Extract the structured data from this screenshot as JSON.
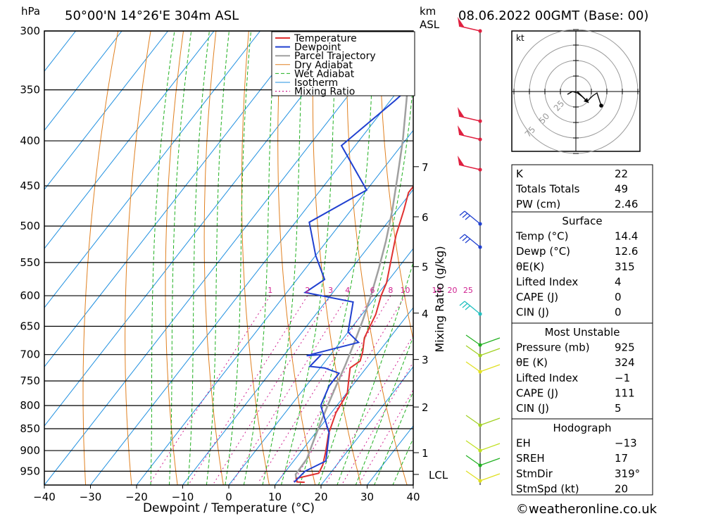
{
  "header": {
    "unit_left": "hPa",
    "location": "50°00'N  14°26'E  304m  ASL",
    "unit_right_1": "km",
    "unit_right_2": "ASL",
    "datetime": "08.06.2022  00GMT  (Base: 00)"
  },
  "chart_data": {
    "type": "line",
    "xlabel": "Dewpoint / Temperature (°C)",
    "ylabel": "",
    "right_label": "Mixing Ratio (g/kg)",
    "x_ticks": [
      -40,
      -30,
      -20,
      -10,
      0,
      10,
      20,
      30,
      40
    ],
    "xlim": [
      -40,
      40
    ],
    "ylim": [
      985,
      300
    ],
    "pressure_levels": [
      300,
      350,
      400,
      450,
      500,
      550,
      600,
      650,
      700,
      750,
      800,
      850,
      900,
      950
    ],
    "km_ticks": [
      {
        "label": "7",
        "p": 428
      },
      {
        "label": "6",
        "p": 488
      },
      {
        "label": "5",
        "p": 556
      },
      {
        "label": "4",
        "p": 628
      },
      {
        "label": "3",
        "p": 709
      },
      {
        "label": "2",
        "p": 803
      },
      {
        "label": "1",
        "p": 905
      },
      {
        "label": "LCL",
        "p": 958
      }
    ],
    "mixing_ratio_labels": [
      "1",
      "2",
      "3",
      "4",
      "6",
      "8",
      "10",
      "16",
      "20",
      "25"
    ],
    "legend": [
      "Temperature",
      "Dewpoint",
      "Parcel Trajectory",
      "Dry Adiabat",
      "Wet Adiabat",
      "Isotherm",
      "Mixing Ratio"
    ],
    "colors": {
      "temperature": "#e03030",
      "dewpoint": "#2040d0",
      "parcel": "#a0a0a0",
      "dry_adiabat": "#e08020",
      "wet_adiabat": "#20b020",
      "isotherm": "#2090e0",
      "mixing_ratio": "#d02090"
    },
    "series": [
      {
        "name": "Temperature",
        "points": [
          [
            16,
            978
          ],
          [
            14.3,
            977
          ],
          [
            13.5,
            968
          ],
          [
            17.5,
            955
          ],
          [
            17,
            935
          ],
          [
            15.5,
            905
          ],
          [
            13,
            862
          ],
          [
            11,
            815
          ],
          [
            10.2,
            775
          ],
          [
            8,
            745
          ],
          [
            6.5,
            725
          ],
          [
            7.5,
            712
          ],
          [
            6.5,
            695
          ],
          [
            4.5,
            670
          ],
          [
            3,
            630
          ],
          [
            1,
            600
          ],
          [
            0,
            580
          ],
          [
            -3,
            545
          ],
          [
            -6,
            512
          ],
          [
            -8.5,
            480
          ],
          [
            -10.5,
            458
          ],
          [
            -10.5,
            440
          ],
          [
            -10,
            405
          ],
          [
            -12.5,
            390
          ],
          [
            -15.5,
            360
          ],
          [
            -21,
            300
          ]
        ]
      },
      {
        "name": "Dewpoint",
        "points": [
          [
            13.7,
            978
          ],
          [
            14.2,
            950
          ],
          [
            17,
            925
          ],
          [
            13,
            860
          ],
          [
            6.5,
            800
          ],
          [
            5,
            760
          ],
          [
            5,
            735
          ],
          [
            1,
            725
          ],
          [
            -2.5,
            722
          ],
          [
            -2,
            700
          ],
          [
            -5,
            702
          ],
          [
            4,
            678
          ],
          [
            0,
            660
          ],
          [
            -4,
            610
          ],
          [
            -16,
            595
          ],
          [
            -14,
            575
          ],
          [
            -20,
            540
          ],
          [
            -27,
            495
          ],
          [
            -20,
            455
          ],
          [
            -33,
            405
          ],
          [
            -29,
            360
          ],
          [
            -24,
            300
          ]
        ]
      },
      {
        "name": "Parcel Trajectory",
        "points": [
          [
            14.3,
            978
          ],
          [
            12.7,
            958
          ],
          [
            12.5,
            920
          ],
          [
            11,
            880
          ],
          [
            9.5,
            840
          ],
          [
            8,
            800
          ],
          [
            6.5,
            760
          ],
          [
            5,
            720
          ],
          [
            3.2,
            680
          ],
          [
            1.2,
            640
          ],
          [
            -1.2,
            600
          ],
          [
            -4,
            560
          ],
          [
            -7.2,
            520
          ],
          [
            -11,
            480
          ],
          [
            -15.5,
            440
          ],
          [
            -20.5,
            400
          ],
          [
            -26.5,
            360
          ],
          [
            -31.5,
            330
          ],
          [
            -35.5,
            305
          ]
        ]
      }
    ]
  },
  "hodograph": {
    "unit": "kt",
    "ring_labels": [
      "25",
      "50",
      "75"
    ]
  },
  "indices": {
    "rows": [
      {
        "label": "K",
        "value": "22"
      },
      {
        "label": "Totals Totals",
        "value": "49"
      },
      {
        "label": "PW (cm)",
        "value": "2.46"
      }
    ]
  },
  "surface": {
    "title": "Surface",
    "rows": [
      {
        "label": "Temp (°C)",
        "value": "14.4"
      },
      {
        "label": "Dewp (°C)",
        "value": "12.6"
      },
      {
        "label": "θE(K)",
        "value": "315"
      },
      {
        "label": "Lifted Index",
        "value": "4"
      },
      {
        "label": "CAPE (J)",
        "value": "0"
      },
      {
        "label": "CIN (J)",
        "value": "0"
      }
    ]
  },
  "most_unstable": {
    "title": "Most Unstable",
    "rows": [
      {
        "label": "Pressure (mb)",
        "value": "925"
      },
      {
        "label": "θE (K)",
        "value": "324"
      },
      {
        "label": "Lifted Index",
        "value": "-1"
      },
      {
        "label": "CAPE (J)",
        "value": "111"
      },
      {
        "label": "CIN (J)",
        "value": "5"
      }
    ]
  },
  "hodograph_table": {
    "title": "Hodograph",
    "rows": [
      {
        "label": "EH",
        "value": "-13"
      },
      {
        "label": "SREH",
        "value": "17"
      },
      {
        "label": "StmDir",
        "value": "319°"
      },
      {
        "label": "StmSpd (kt)",
        "value": "20"
      }
    ]
  },
  "footer": {
    "copyright": "©weatheronline.co.uk"
  }
}
